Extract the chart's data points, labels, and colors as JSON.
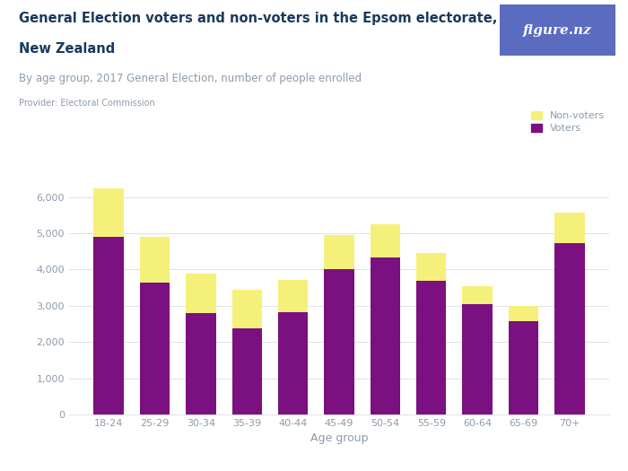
{
  "categories": [
    "18-24",
    "25-29",
    "30-34",
    "35-39",
    "40-44",
    "45-49",
    "50-54",
    "55-59",
    "60-64",
    "65-69",
    "70+"
  ],
  "voters": [
    4900,
    3650,
    2800,
    2375,
    2825,
    4000,
    4325,
    3700,
    3050,
    2575,
    4725
  ],
  "non_voters": [
    1350,
    1250,
    1100,
    1075,
    900,
    950,
    925,
    750,
    500,
    425,
    850
  ],
  "voter_color": "#7b1080",
  "non_voter_color": "#f5f07a",
  "background_color": "#ffffff",
  "title_line1": "General Election voters and non-voters in the Epsom electorate,",
  "title_line2": "New Zealand",
  "subtitle": "By age group, 2017 General Election, number of people enrolled",
  "provider": "Provider: Electoral Commission",
  "xlabel": "Age group",
  "ylim": [
    0,
    6500
  ],
  "yticks": [
    0,
    1000,
    2000,
    3000,
    4000,
    5000,
    6000
  ],
  "legend_nonvoters": "Non-voters",
  "legend_voters": "Voters",
  "logo_text": "figure.nz",
  "logo_bg": "#5b6bbf",
  "title_color": "#1a3a5c",
  "axis_label_color": "#8c9bab",
  "grid_color": "#dce1e7"
}
